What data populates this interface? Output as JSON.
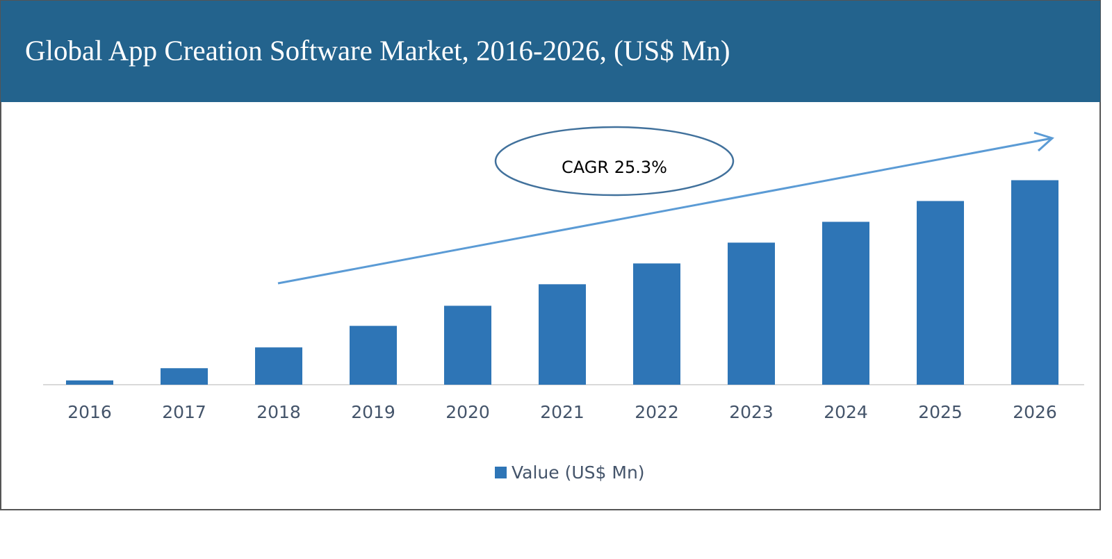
{
  "chart_data": {
    "type": "bar",
    "title": "Global App Creation Software Market, 2016-2026, (US$ Mn)",
    "annotation": "CAGR 25.3%",
    "categories": [
      "2016",
      "2017",
      "2018",
      "2019",
      "2020",
      "2021",
      "2022",
      "2023",
      "2024",
      "2025",
      "2026"
    ],
    "series": [
      {
        "name": "Value (US$ Mn)",
        "color": "#2e75b6",
        "values": [
          6,
          23,
          52,
          82,
          110,
          140,
          169,
          198,
          227,
          256,
          285
        ]
      }
    ],
    "ylim": [
      0,
      300
    ],
    "legend": "bottom"
  }
}
